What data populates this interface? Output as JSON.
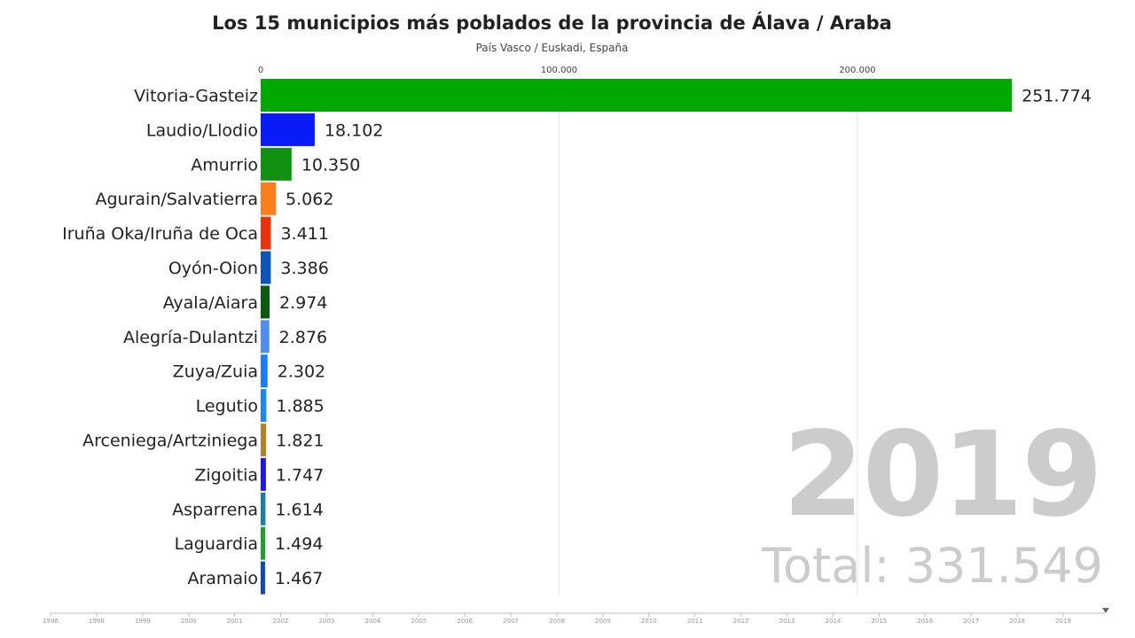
{
  "title": "Los 15 municipios más poblados de la provincia de Álava / Araba",
  "subtitle": "País Vasco / Euskadi, España",
  "year": "2019",
  "total": "Total: 331.549",
  "timeline": {
    "years": [
      "1996",
      "1998",
      "1999",
      "2000",
      "2001",
      "2002",
      "2003",
      "2004",
      "2005",
      "2006",
      "2007",
      "2008",
      "2009",
      "2010",
      "2011",
      "2012",
      "2013",
      "2014",
      "2015",
      "2016",
      "2017",
      "2018",
      "2019"
    ],
    "current": "2019"
  },
  "chart_data": {
    "type": "bar",
    "orientation": "horizontal",
    "title": "Los 15 municipios más poblados de la provincia de Álava / Araba",
    "subtitle": "País Vasco / Euskadi, España",
    "xlim": [
      0,
      280000
    ],
    "x_ticks": [
      0,
      100000,
      200000
    ],
    "x_tick_labels": [
      "0",
      "100.000",
      "200.000"
    ],
    "grid": true,
    "categories": [
      "Vitoria-Gasteiz",
      "Laudio/Llodio",
      "Amurrio",
      "Agurain/Salvatierra",
      "Iruña Oka/Iruña de Oca",
      "Oyón-Oion",
      "Ayala/Aiara",
      "Alegría-Dulantzi",
      "Zuya/Zuia",
      "Legutio",
      "Arceniega/Artziniega",
      "Zigoitia",
      "Asparrena",
      "Laguardia",
      "Aramaio"
    ],
    "values": [
      251774,
      18102,
      10350,
      5062,
      3411,
      3386,
      2974,
      2876,
      2302,
      1885,
      1821,
      1747,
      1614,
      1494,
      1467
    ],
    "value_labels": [
      "251.774",
      "18.102",
      "10.350",
      "5.062",
      "3.411",
      "3.386",
      "2.974",
      "2.876",
      "2.302",
      "1.885",
      "1.821",
      "1.747",
      "1.614",
      "1.494",
      "1.467"
    ],
    "colors": [
      "#00a800",
      "#0a1cf5",
      "#119111",
      "#fb7e1d",
      "#e8330d",
      "#0d55b5",
      "#0b5a12",
      "#4f8cf0",
      "#1a7df2",
      "#1c87f0",
      "#b08428",
      "#1f17e6",
      "#1d7fa3",
      "#1aa12e",
      "#0b4ab8"
    ]
  }
}
